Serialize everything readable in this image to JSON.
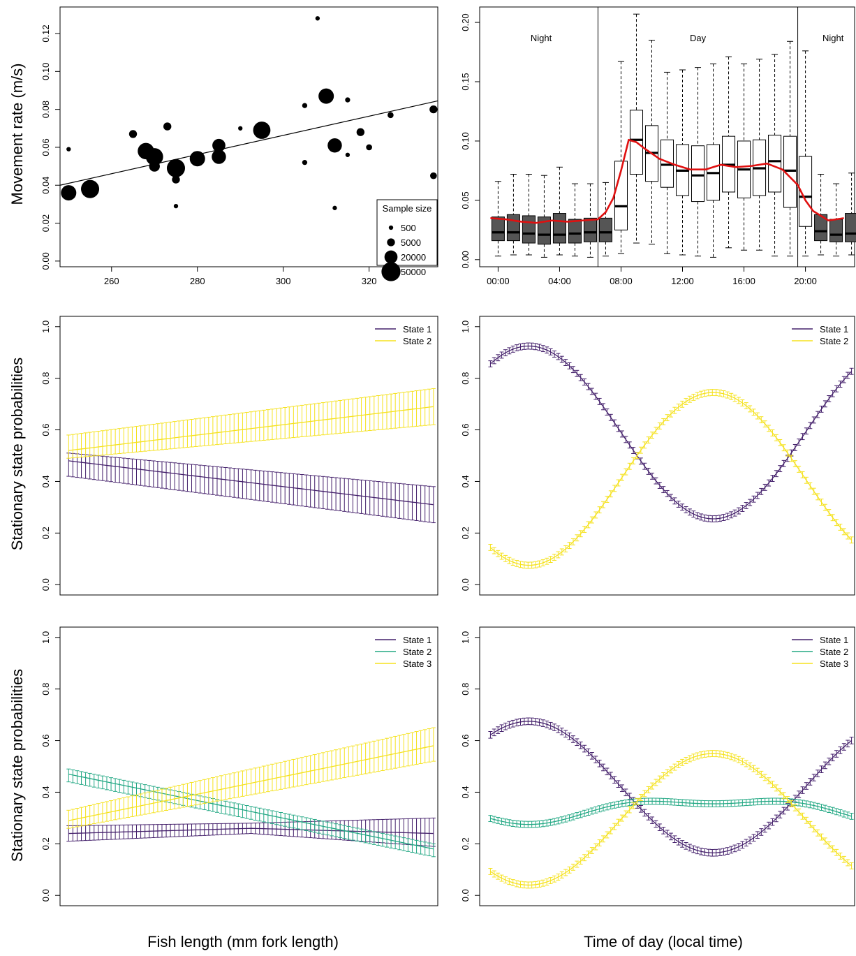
{
  "figure": {
    "ylabels": {
      "movement": "Movement rate (m/s)",
      "stationary_a": "Stationary state probabilities",
      "stationary_b": "Stationary state probabilities"
    },
    "xlabels": {
      "left": "Fish length (mm fork length)",
      "right": "Time of day (local time)"
    }
  },
  "colors": {
    "state1": "#44206b",
    "state2_2state": "#f5e21f",
    "state2_3state": "#23a884",
    "state3": "#f5e21f",
    "smooth": "#e01010",
    "night_box": "#555555",
    "day_box": "#ffffff"
  },
  "chart_data": [
    {
      "id": "movement-vs-length",
      "type": "scatter",
      "ylabel": "Movement rate (m/s)",
      "xlim": [
        248,
        336
      ],
      "ylim": [
        -0.003,
        0.134
      ],
      "x_ticks": [
        260,
        280,
        300,
        320
      ],
      "y_ticks": [
        0.0,
        0.02,
        0.04,
        0.06,
        0.08,
        0.1,
        0.12
      ],
      "y_tick_labels": [
        "0.00",
        "0.02",
        "0.04",
        "0.06",
        "0.08",
        "0.10",
        "0.12"
      ],
      "legend": {
        "title": "Sample size",
        "position": "bottom-right",
        "entries": [
          {
            "label": "500",
            "size": 500
          },
          {
            "label": "5000",
            "size": 5000
          },
          {
            "label": "20000",
            "size": 20000
          },
          {
            "label": "50000",
            "size": 50000
          }
        ]
      },
      "regression_line": {
        "x": [
          248,
          336
        ],
        "y": [
          0.04,
          0.0845
        ]
      },
      "points": [
        {
          "x": 250,
          "y": 0.059,
          "n": 500
        },
        {
          "x": 250,
          "y": 0.036,
          "n": 30000
        },
        {
          "x": 255,
          "y": 0.038,
          "n": 45000
        },
        {
          "x": 265,
          "y": 0.067,
          "n": 5000
        },
        {
          "x": 268,
          "y": 0.058,
          "n": 35000
        },
        {
          "x": 270,
          "y": 0.055,
          "n": 40000
        },
        {
          "x": 270,
          "y": 0.05,
          "n": 12000
        },
        {
          "x": 273,
          "y": 0.071,
          "n": 5000
        },
        {
          "x": 275,
          "y": 0.049,
          "n": 45000
        },
        {
          "x": 275,
          "y": 0.043,
          "n": 5000
        },
        {
          "x": 275,
          "y": 0.029,
          "n": 500
        },
        {
          "x": 280,
          "y": 0.054,
          "n": 30000
        },
        {
          "x": 285,
          "y": 0.061,
          "n": 20000
        },
        {
          "x": 285,
          "y": 0.055,
          "n": 25000
        },
        {
          "x": 290,
          "y": 0.07,
          "n": 500
        },
        {
          "x": 295,
          "y": 0.069,
          "n": 40000
        },
        {
          "x": 305,
          "y": 0.082,
          "n": 1000
        },
        {
          "x": 305,
          "y": 0.052,
          "n": 1000
        },
        {
          "x": 308,
          "y": 0.128,
          "n": 500
        },
        {
          "x": 310,
          "y": 0.087,
          "n": 30000
        },
        {
          "x": 312,
          "y": 0.061,
          "n": 25000
        },
        {
          "x": 312,
          "y": 0.028,
          "n": 500
        },
        {
          "x": 315,
          "y": 0.085,
          "n": 1000
        },
        {
          "x": 315,
          "y": 0.056,
          "n": 500
        },
        {
          "x": 318,
          "y": 0.068,
          "n": 5000
        },
        {
          "x": 320,
          "y": 0.06,
          "n": 2000
        },
        {
          "x": 325,
          "y": 0.077,
          "n": 2000
        },
        {
          "x": 335,
          "y": 0.08,
          "n": 5000
        },
        {
          "x": 335,
          "y": 0.045,
          "n": 3000
        }
      ]
    },
    {
      "id": "movement-vs-time",
      "type": "box",
      "xlim": [
        -1.2,
        23.2
      ],
      "ylim": [
        -0.006,
        0.213
      ],
      "x_ticks": [
        0,
        4,
        8,
        12,
        16,
        20
      ],
      "x_tick_labels": [
        "00:00",
        "04:00",
        "08:00",
        "12:00",
        "16:00",
        "20:00"
      ],
      "y_ticks": [
        0.0,
        0.05,
        0.1,
        0.15,
        0.2
      ],
      "y_tick_labels": [
        "0.00",
        "0.05",
        "0.10",
        "0.15",
        "0.20"
      ],
      "period_dividers": [
        6.5,
        19.5
      ],
      "period_labels": [
        {
          "label": "Night",
          "x": 2.8
        },
        {
          "label": "Day",
          "x": 13.0
        },
        {
          "label": "Night",
          "x": 21.8
        }
      ],
      "boxes": [
        {
          "h": 0,
          "period": "night",
          "whislo": 0.003,
          "q1": 0.016,
          "med": 0.023,
          "q3": 0.036,
          "whishi": 0.066
        },
        {
          "h": 1,
          "period": "night",
          "whislo": 0.004,
          "q1": 0.016,
          "med": 0.023,
          "q3": 0.038,
          "whishi": 0.072
        },
        {
          "h": 2,
          "period": "night",
          "whislo": 0.004,
          "q1": 0.014,
          "med": 0.022,
          "q3": 0.037,
          "whishi": 0.072
        },
        {
          "h": 3,
          "period": "night",
          "whislo": 0.002,
          "q1": 0.013,
          "med": 0.021,
          "q3": 0.036,
          "whishi": 0.071
        },
        {
          "h": 4,
          "period": "night",
          "whislo": 0.004,
          "q1": 0.014,
          "med": 0.021,
          "q3": 0.039,
          "whishi": 0.078
        },
        {
          "h": 5,
          "period": "night",
          "whislo": 0.003,
          "q1": 0.014,
          "med": 0.022,
          "q3": 0.034,
          "whishi": 0.064
        },
        {
          "h": 6,
          "period": "night",
          "whislo": 0.002,
          "q1": 0.015,
          "med": 0.023,
          "q3": 0.035,
          "whishi": 0.064
        },
        {
          "h": 7,
          "period": "night",
          "whislo": 0.003,
          "q1": 0.015,
          "med": 0.023,
          "q3": 0.035,
          "whishi": 0.065
        },
        {
          "h": 8,
          "period": "day",
          "whislo": 0.005,
          "q1": 0.025,
          "med": 0.045,
          "q3": 0.083,
          "whishi": 0.167
        },
        {
          "h": 9,
          "period": "day",
          "whislo": 0.014,
          "q1": 0.072,
          "med": 0.101,
          "q3": 0.126,
          "whishi": 0.207
        },
        {
          "h": 10,
          "period": "day",
          "whislo": 0.013,
          "q1": 0.066,
          "med": 0.09,
          "q3": 0.113,
          "whishi": 0.185
        },
        {
          "h": 11,
          "period": "day",
          "whislo": 0.005,
          "q1": 0.061,
          "med": 0.08,
          "q3": 0.101,
          "whishi": 0.158
        },
        {
          "h": 12,
          "period": "day",
          "whislo": 0.004,
          "q1": 0.054,
          "med": 0.075,
          "q3": 0.097,
          "whishi": 0.16
        },
        {
          "h": 13,
          "period": "day",
          "whislo": 0.003,
          "q1": 0.049,
          "med": 0.071,
          "q3": 0.096,
          "whishi": 0.162
        },
        {
          "h": 14,
          "period": "day",
          "whislo": 0.002,
          "q1": 0.05,
          "med": 0.073,
          "q3": 0.097,
          "whishi": 0.165
        },
        {
          "h": 15,
          "period": "day",
          "whislo": 0.01,
          "q1": 0.057,
          "med": 0.08,
          "q3": 0.104,
          "whishi": 0.171
        },
        {
          "h": 16,
          "period": "day",
          "whislo": 0.008,
          "q1": 0.052,
          "med": 0.076,
          "q3": 0.1,
          "whishi": 0.165
        },
        {
          "h": 17,
          "period": "day",
          "whislo": 0.008,
          "q1": 0.054,
          "med": 0.077,
          "q3": 0.101,
          "whishi": 0.169
        },
        {
          "h": 18,
          "period": "day",
          "whislo": 0.003,
          "q1": 0.057,
          "med": 0.083,
          "q3": 0.105,
          "whishi": 0.173
        },
        {
          "h": 19,
          "period": "day",
          "whislo": 0.003,
          "q1": 0.044,
          "med": 0.075,
          "q3": 0.104,
          "whishi": 0.184
        },
        {
          "h": 20,
          "period": "day",
          "whislo": 0.003,
          "q1": 0.028,
          "med": 0.053,
          "q3": 0.087,
          "whishi": 0.176
        },
        {
          "h": 21,
          "period": "night",
          "whislo": 0.004,
          "q1": 0.016,
          "med": 0.024,
          "q3": 0.038,
          "whishi": 0.072
        },
        {
          "h": 22,
          "period": "night",
          "whislo": 0.003,
          "q1": 0.015,
          "med": 0.021,
          "q3": 0.034,
          "whishi": 0.064
        },
        {
          "h": 23,
          "period": "night",
          "whislo": 0.004,
          "q1": 0.015,
          "med": 0.022,
          "q3": 0.039,
          "whishi": 0.073
        }
      ],
      "smooth_line": {
        "x": [
          -0.5,
          0.5,
          1.5,
          2.5,
          3.5,
          4.5,
          5.5,
          6.5,
          7.0,
          7.5,
          8.0,
          8.5,
          9.0,
          9.5,
          10.5,
          11.5,
          12.5,
          13.5,
          14.5,
          15.5,
          16.5,
          17.5,
          18.5,
          19.5,
          20.0,
          20.5,
          21.5,
          22.5
        ],
        "y": [
          0.035,
          0.034,
          0.032,
          0.031,
          0.033,
          0.032,
          0.033,
          0.034,
          0.04,
          0.052,
          0.075,
          0.101,
          0.099,
          0.094,
          0.085,
          0.08,
          0.076,
          0.076,
          0.08,
          0.078,
          0.079,
          0.081,
          0.076,
          0.063,
          0.05,
          0.041,
          0.033,
          0.035
        ]
      }
    },
    {
      "id": "stationary-2state-length",
      "type": "line",
      "ylabel": "Stationary state probabilities",
      "xlim": [
        248,
        336
      ],
      "ylim": [
        -0.04,
        1.04
      ],
      "y_ticks": [
        0.0,
        0.2,
        0.4,
        0.6,
        0.8,
        1.0
      ],
      "y_tick_labels": [
        "0.0",
        "0.2",
        "0.4",
        "0.6",
        "0.8",
        "1.0"
      ],
      "legend_position": "top-right",
      "x_range": [
        250,
        335
      ],
      "series": [
        {
          "name": "State 1",
          "color_key": "state1",
          "mean": [
            0.48,
            0.31
          ],
          "lower": [
            0.42,
            0.24
          ],
          "upper": [
            0.51,
            0.38
          ]
        },
        {
          "name": "State 2",
          "color_key": "state2_2state",
          "mean": [
            0.52,
            0.69
          ],
          "lower": [
            0.49,
            0.62
          ],
          "upper": [
            0.58,
            0.76
          ]
        }
      ]
    },
    {
      "id": "stationary-2state-time",
      "type": "line",
      "xlim": [
        -1.2,
        23.2
      ],
      "ylim": [
        -0.04,
        1.04
      ],
      "y_ticks": [
        0.0,
        0.2,
        0.4,
        0.6,
        0.8,
        1.0
      ],
      "y_tick_labels": [
        "0.0",
        "0.2",
        "0.4",
        "0.6",
        "0.8",
        "1.0"
      ],
      "legend_position": "top-right",
      "x_range": [
        -0.5,
        23.0
      ],
      "series": [
        {
          "name": "State 1",
          "color_key": "state1",
          "midline": 0.59,
          "amplitude": 0.335,
          "peak_hour": 2.0,
          "err": 0.012
        },
        {
          "name": "State 2",
          "color_key": "state2_2state",
          "midline": 0.41,
          "amplitude": -0.335,
          "peak_hour": 2.0,
          "err": 0.012
        }
      ]
    },
    {
      "id": "stationary-3state-length",
      "type": "line",
      "ylabel": "Stationary state probabilities",
      "xlim": [
        248,
        336
      ],
      "ylim": [
        -0.04,
        1.04
      ],
      "y_ticks": [
        0.0,
        0.2,
        0.4,
        0.6,
        0.8,
        1.0
      ],
      "y_tick_labels": [
        "0.0",
        "0.2",
        "0.4",
        "0.6",
        "0.8",
        "1.0"
      ],
      "legend_position": "top-right",
      "x_range": [
        250,
        335
      ],
      "series": [
        {
          "name": "State 1",
          "color_key": "state1",
          "mean": [
            0.24,
            0.26,
            0.24
          ],
          "lower": [
            0.21,
            0.24,
            0.19
          ],
          "upper": [
            0.27,
            0.28,
            0.3
          ]
        },
        {
          "name": "State 2",
          "color_key": "state2_3state",
          "mean": [
            0.47,
            0.18
          ],
          "lower": [
            0.44,
            0.15
          ],
          "upper": [
            0.49,
            0.2
          ]
        },
        {
          "name": "State 3",
          "color_key": "state3",
          "mean": [
            0.29,
            0.58
          ],
          "lower": [
            0.26,
            0.52
          ],
          "upper": [
            0.33,
            0.65
          ]
        }
      ]
    },
    {
      "id": "stationary-3state-time",
      "type": "line",
      "xlim": [
        -1.2,
        23.2
      ],
      "ylim": [
        -0.04,
        1.04
      ],
      "y_ticks": [
        0.0,
        0.2,
        0.4,
        0.6,
        0.8,
        1.0
      ],
      "y_tick_labels": [
        "0.0",
        "0.2",
        "0.4",
        "0.6",
        "0.8",
        "1.0"
      ],
      "legend_position": "top-right",
      "x_range": [
        -0.5,
        23.0
      ],
      "series": [
        {
          "name": "State 1",
          "color_key": "state1",
          "midline": 0.42,
          "amplitude": 0.255,
          "peak_hour": 2.0,
          "err": 0.013
        },
        {
          "name": "State 2",
          "color_key": "state2_3state",
          "midline": 0.335,
          "amplitude": -0.04,
          "peak_hour": 2.0,
          "err": 0.012,
          "harmonic2": -0.02
        },
        {
          "name": "State 3",
          "color_key": "state3",
          "midline": 0.295,
          "amplitude": -0.255,
          "peak_hour": 2.0,
          "err": 0.012
        }
      ]
    }
  ]
}
